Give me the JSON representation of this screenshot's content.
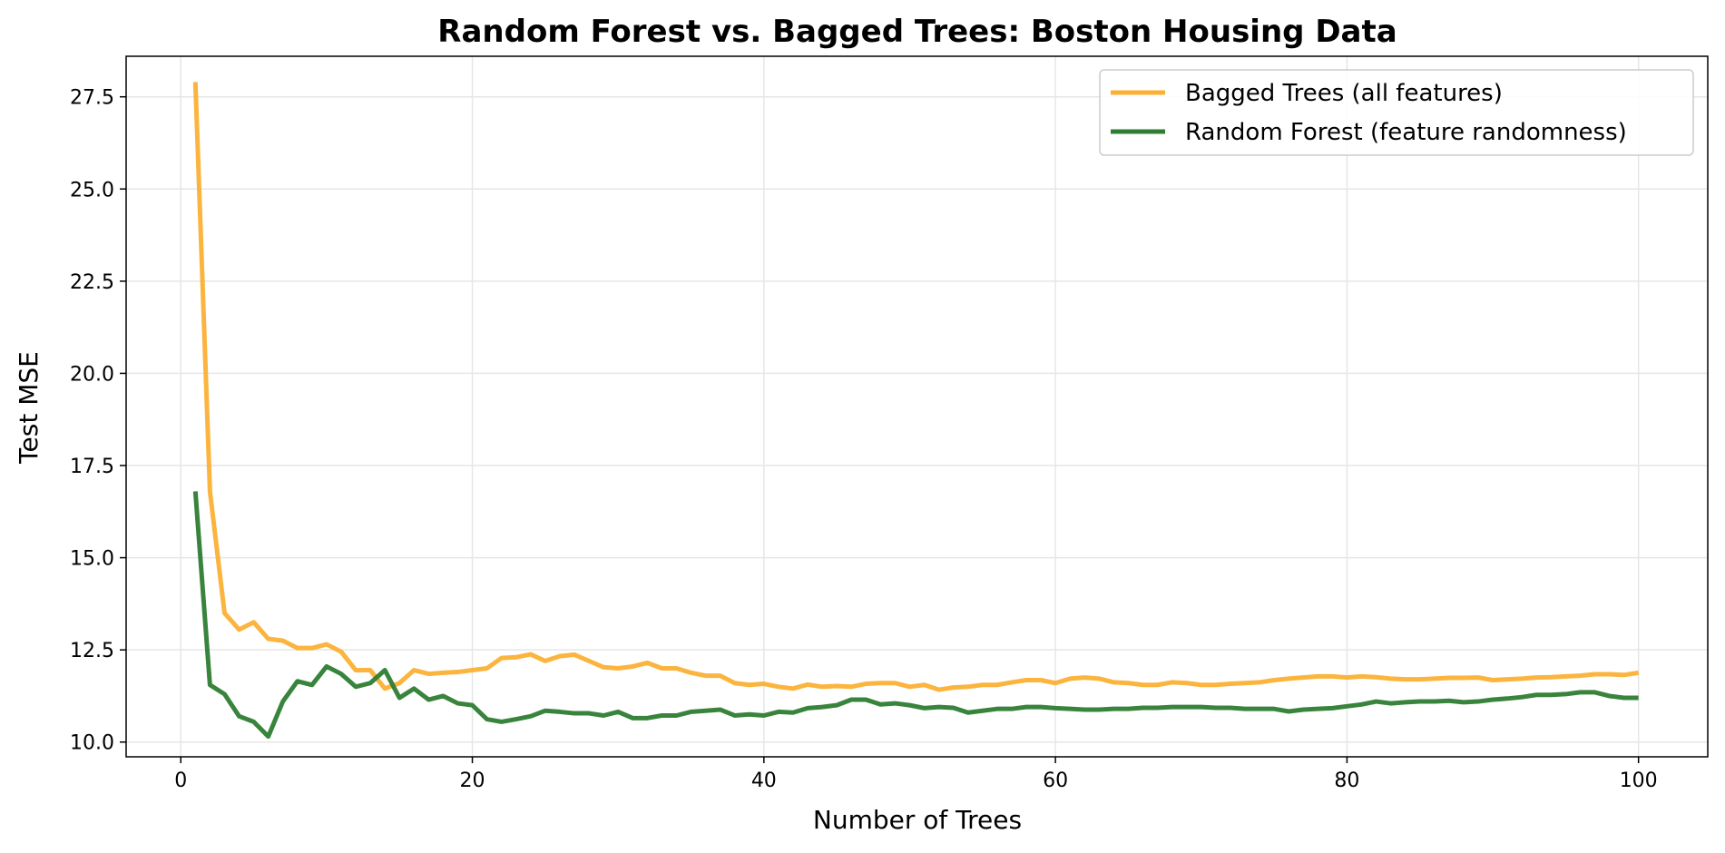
{
  "chart_data": {
    "type": "line",
    "title": "Random Forest vs. Bagged Trees: Boston Housing Data",
    "xlabel": "Number of Trees",
    "ylabel": "Test MSE",
    "xlim": [
      -3.75,
      104.75
    ],
    "ylim": [
      9.6,
      28.6
    ],
    "xticks": [
      0,
      20,
      40,
      60,
      80,
      100
    ],
    "yticks": [
      10.0,
      12.5,
      15.0,
      17.5,
      20.0,
      22.5,
      25.0,
      27.5
    ],
    "xtick_labels": [
      "0",
      "20",
      "40",
      "60",
      "80",
      "100"
    ],
    "ytick_labels": [
      "10.0",
      "12.5",
      "15.0",
      "17.5",
      "20.0",
      "22.5",
      "25.0",
      "27.5"
    ],
    "grid": true,
    "legend_position": "top-right",
    "series": [
      {
        "name": "Bagged Trees (all features)",
        "color": "#FBB034",
        "x": [
          1,
          2,
          3,
          4,
          5,
          6,
          7,
          8,
          9,
          10,
          11,
          12,
          13,
          14,
          15,
          16,
          17,
          18,
          19,
          20,
          21,
          22,
          23,
          24,
          25,
          26,
          27,
          28,
          29,
          30,
          31,
          32,
          33,
          34,
          35,
          36,
          37,
          38,
          39,
          40,
          41,
          42,
          43,
          44,
          45,
          46,
          47,
          48,
          49,
          50,
          51,
          52,
          53,
          54,
          55,
          56,
          57,
          58,
          59,
          60,
          61,
          62,
          63,
          64,
          65,
          66,
          67,
          68,
          69,
          70,
          71,
          72,
          73,
          74,
          75,
          76,
          77,
          78,
          79,
          80,
          81,
          82,
          83,
          84,
          85,
          86,
          87,
          88,
          89,
          90,
          91,
          92,
          93,
          94,
          95,
          96,
          97,
          98,
          99,
          100
        ],
        "values": [
          27.9,
          16.8,
          13.5,
          13.05,
          13.25,
          12.8,
          12.75,
          12.55,
          12.55,
          12.65,
          12.45,
          11.95,
          11.95,
          11.45,
          11.6,
          11.95,
          11.85,
          11.88,
          11.9,
          11.95,
          12.0,
          12.28,
          12.3,
          12.38,
          12.2,
          12.33,
          12.37,
          12.2,
          12.03,
          12.0,
          12.05,
          12.15,
          12.0,
          12.0,
          11.88,
          11.8,
          11.8,
          11.6,
          11.55,
          11.58,
          11.5,
          11.45,
          11.56,
          11.5,
          11.52,
          11.5,
          11.58,
          11.6,
          11.6,
          11.5,
          11.55,
          11.42,
          11.48,
          11.5,
          11.55,
          11.55,
          11.62,
          11.68,
          11.68,
          11.6,
          11.72,
          11.75,
          11.72,
          11.62,
          11.6,
          11.55,
          11.55,
          11.62,
          11.6,
          11.55,
          11.55,
          11.58,
          11.6,
          11.62,
          11.68,
          11.72,
          11.75,
          11.78,
          11.78,
          11.75,
          11.78,
          11.76,
          11.72,
          11.7,
          11.7,
          11.72,
          11.74,
          11.74,
          11.75,
          11.68,
          11.7,
          11.72,
          11.75,
          11.76,
          11.78,
          11.8,
          11.84,
          11.84,
          11.82,
          11.88
        ]
      },
      {
        "name": "Random Forest (feature randomness)",
        "color": "#2E7D32",
        "x": [
          1,
          2,
          3,
          4,
          5,
          6,
          7,
          8,
          9,
          10,
          11,
          12,
          13,
          14,
          15,
          16,
          17,
          18,
          19,
          20,
          21,
          22,
          23,
          24,
          25,
          26,
          27,
          28,
          29,
          30,
          31,
          32,
          33,
          34,
          35,
          36,
          37,
          38,
          39,
          40,
          41,
          42,
          43,
          44,
          45,
          46,
          47,
          48,
          49,
          50,
          51,
          52,
          53,
          54,
          55,
          56,
          57,
          58,
          59,
          60,
          61,
          62,
          63,
          64,
          65,
          66,
          67,
          68,
          69,
          70,
          71,
          72,
          73,
          74,
          75,
          76,
          77,
          78,
          79,
          80,
          81,
          82,
          83,
          84,
          85,
          86,
          87,
          88,
          89,
          90,
          91,
          92,
          93,
          94,
          95,
          96,
          97,
          98,
          99,
          100
        ],
        "values": [
          16.8,
          11.55,
          11.3,
          10.7,
          10.55,
          10.15,
          11.1,
          11.65,
          11.55,
          12.05,
          11.85,
          11.5,
          11.6,
          11.95,
          11.2,
          11.45,
          11.15,
          11.25,
          11.05,
          11.0,
          10.62,
          10.55,
          10.62,
          10.7,
          10.85,
          10.82,
          10.78,
          10.78,
          10.72,
          10.82,
          10.65,
          10.65,
          10.72,
          10.72,
          10.82,
          10.85,
          10.88,
          10.72,
          10.75,
          10.72,
          10.82,
          10.8,
          10.92,
          10.95,
          11.0,
          11.15,
          11.15,
          11.02,
          11.05,
          11.0,
          10.92,
          10.95,
          10.93,
          10.8,
          10.85,
          10.9,
          10.9,
          10.95,
          10.95,
          10.92,
          10.9,
          10.88,
          10.88,
          10.9,
          10.9,
          10.93,
          10.93,
          10.95,
          10.95,
          10.95,
          10.93,
          10.93,
          10.9,
          10.9,
          10.9,
          10.83,
          10.88,
          10.9,
          10.92,
          10.97,
          11.02,
          11.1,
          11.05,
          11.08,
          11.1,
          11.1,
          11.12,
          11.08,
          11.1,
          11.15,
          11.18,
          11.22,
          11.28,
          11.28,
          11.3,
          11.35,
          11.35,
          11.25,
          11.2,
          11.2
        ]
      }
    ]
  }
}
